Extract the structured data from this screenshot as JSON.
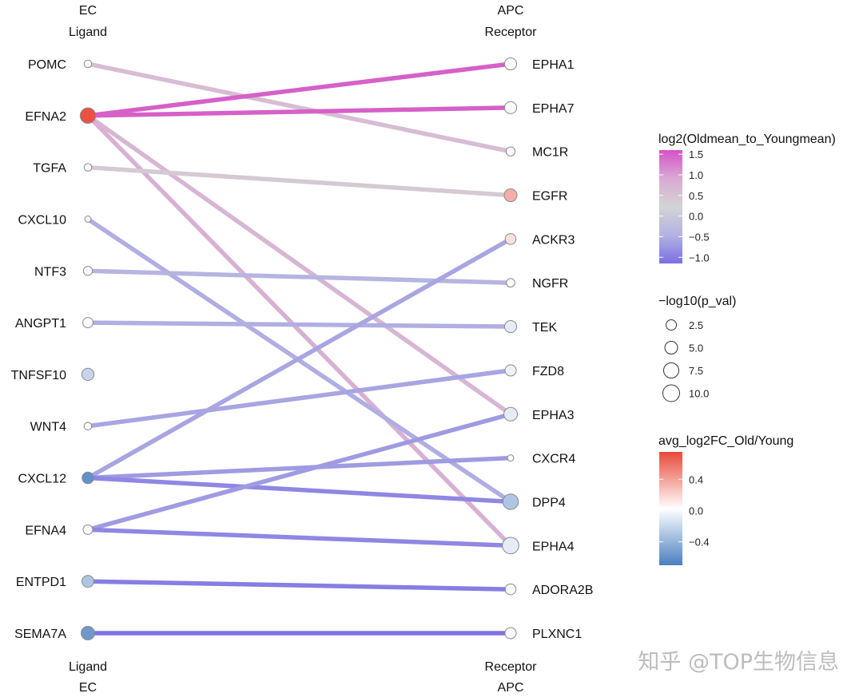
{
  "chart_data": {
    "type": "ligand-receptor-network",
    "left_axis": {
      "top_title": "EC",
      "top_subtitle": "Ligand",
      "bottom_title": "Ligand",
      "bottom_subtitle": "EC"
    },
    "right_axis": {
      "top_title": "APC",
      "top_subtitle": "Receptor",
      "bottom_title": "Receptor",
      "bottom_subtitle": "APC"
    },
    "ligands": [
      {
        "name": "POMC",
        "pval_log": 0.5,
        "fc": 0.0
      },
      {
        "name": "EFNA2",
        "pval_log": 5.0,
        "fc": 0.72
      },
      {
        "name": "TGFA",
        "pval_log": 0.5,
        "fc": 0.0
      },
      {
        "name": "CXCL10",
        "pval_log": 0.2,
        "fc": 0.0
      },
      {
        "name": "NTF3",
        "pval_log": 1.0,
        "fc": 0.0
      },
      {
        "name": "ANGPT1",
        "pval_log": 1.5,
        "fc": 0.0
      },
      {
        "name": "TNFSF10",
        "pval_log": 2.6,
        "fc": -0.2
      },
      {
        "name": "WNT4",
        "pval_log": 0.5,
        "fc": 0.0
      },
      {
        "name": "CXCL12",
        "pval_log": 2.2,
        "fc": -0.6
      },
      {
        "name": "EFNA4",
        "pval_log": 1.2,
        "fc": 0.0
      },
      {
        "name": "ENTPD1",
        "pval_log": 2.4,
        "fc": -0.3
      },
      {
        "name": "SEMA7A",
        "pval_log": 3.5,
        "fc": -0.55
      }
    ],
    "receptors": [
      {
        "name": "EPHA1",
        "pval_log": 2.5,
        "fc": 0.0
      },
      {
        "name": "EPHA7",
        "pval_log": 2.5,
        "fc": 0.0
      },
      {
        "name": "MC1R",
        "pval_log": 1.0,
        "fc": 0.0
      },
      {
        "name": "EGFR",
        "pval_log": 3.0,
        "fc": 0.35
      },
      {
        "name": "ACKR3",
        "pval_log": 1.8,
        "fc": 0.15
      },
      {
        "name": "NGFR",
        "pval_log": 0.8,
        "fc": 0.0
      },
      {
        "name": "TEK",
        "pval_log": 2.5,
        "fc": -0.08
      },
      {
        "name": "FZD8",
        "pval_log": 2.0,
        "fc": -0.05
      },
      {
        "name": "EPHA3",
        "pval_log": 3.5,
        "fc": -0.08
      },
      {
        "name": "CXCR4",
        "pval_log": 0.2,
        "fc": 0.0
      },
      {
        "name": "DPP4",
        "pval_log": 5.0,
        "fc": -0.3
      },
      {
        "name": "EPHA4",
        "pval_log": 6.0,
        "fc": -0.08
      },
      {
        "name": "ADORA2B",
        "pval_log": 1.8,
        "fc": 0.0
      },
      {
        "name": "PLXNC1",
        "pval_log": 2.0,
        "fc": 0.0
      }
    ],
    "links": [
      {
        "ligand": "POMC",
        "receptor": "MC1R",
        "log2": 0.6
      },
      {
        "ligand": "EFNA2",
        "receptor": "EPHA1",
        "log2": 1.5
      },
      {
        "ligand": "EFNA2",
        "receptor": "EPHA7",
        "log2": 1.5
      },
      {
        "ligand": "EFNA2",
        "receptor": "EPHA3",
        "log2": 0.7
      },
      {
        "ligand": "EFNA2",
        "receptor": "EPHA4",
        "log2": 0.8
      },
      {
        "ligand": "TGFA",
        "receptor": "EGFR",
        "log2": 0.4
      },
      {
        "ligand": "CXCL10",
        "receptor": "DPP4",
        "log2": -0.5
      },
      {
        "ligand": "NTF3",
        "receptor": "NGFR",
        "log2": -0.4
      },
      {
        "ligand": "ANGPT1",
        "receptor": "TEK",
        "log2": -0.5
      },
      {
        "ligand": "WNT4",
        "receptor": "FZD8",
        "log2": -0.6
      },
      {
        "ligand": "CXCL12",
        "receptor": "ACKR3",
        "log2": -0.6
      },
      {
        "ligand": "CXCL12",
        "receptor": "CXCR4",
        "log2": -0.7
      },
      {
        "ligand": "CXCL12",
        "receptor": "DPP4",
        "log2": -0.9
      },
      {
        "ligand": "EFNA4",
        "receptor": "EPHA3",
        "log2": -0.7
      },
      {
        "ligand": "EFNA4",
        "receptor": "EPHA4",
        "log2": -0.9
      },
      {
        "ligand": "ENTPD1",
        "receptor": "ADORA2B",
        "log2": -1.0
      },
      {
        "ligand": "SEMA7A",
        "receptor": "PLXNC1",
        "log2": -1.1
      }
    ],
    "legends": {
      "log2": {
        "title": "log2(Oldmean_to_Youngmean)",
        "ticks": [
          1.5,
          1.0,
          0.5,
          0.0,
          -0.5,
          -1.0
        ],
        "tick_labels": [
          "1.5",
          "1.0",
          "0.5",
          "0.0",
          "−0.5",
          "−1.0"
        ],
        "range": [
          -1.15,
          1.6
        ],
        "colors": [
          "#d553c6",
          "#d9a9d4",
          "#d4d4d4",
          "#b3b2e2",
          "#7a6fe3"
        ]
      },
      "pval": {
        "title": "−log10(p_val)",
        "values": [
          2.5,
          5.0,
          7.5,
          10.0
        ],
        "labels": [
          "2.5",
          "5.0",
          "7.5",
          "10.0"
        ]
      },
      "fc": {
        "title": "avg_log2FC_Old/Young",
        "ticks": [
          0.4,
          0.0,
          -0.4
        ],
        "tick_labels": [
          "0.4",
          "0.0",
          "−0.4"
        ],
        "range": [
          -0.7,
          0.75
        ],
        "colors": [
          "#e8493a",
          "#ffffff",
          "#4a7fc0"
        ]
      }
    }
  },
  "watermark": "知乎 @TOP生物信息"
}
